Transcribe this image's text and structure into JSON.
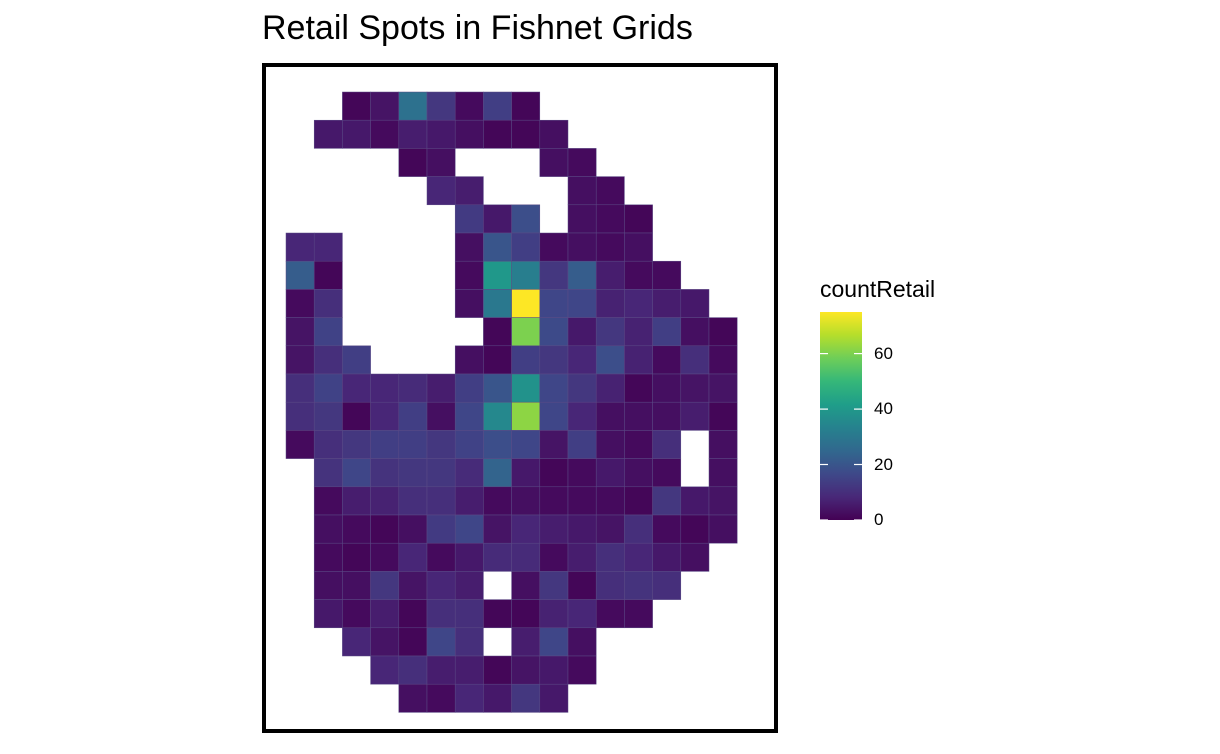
{
  "chart_data": {
    "type": "heatmap",
    "title": "Retail Spots in Fishnet Grids",
    "legend": {
      "title": "countRetail",
      "position": "right",
      "ticks": [
        0,
        20,
        40,
        60
      ],
      "tick_labels": [
        "0",
        "20",
        "40",
        "60"
      ],
      "range": [
        0,
        75
      ],
      "colormap": "viridis",
      "colors": [
        "#440154",
        "#482878",
        "#3e4989",
        "#31688e",
        "#26828e",
        "#1f9e89",
        "#35b779",
        "#6ece58",
        "#b5de2b",
        "#fde725"
      ]
    },
    "grid": false,
    "frame": true,
    "rows": [
      {
        "row": 1,
        "cells": [
          [
            2,
            1
          ],
          [
            3,
            4
          ],
          [
            4,
            28
          ],
          [
            5,
            12
          ],
          [
            6,
            2
          ],
          [
            7,
            14
          ],
          [
            8,
            1
          ]
        ]
      },
      {
        "row": 2,
        "cells": [
          [
            1,
            5
          ],
          [
            2,
            5
          ],
          [
            3,
            2
          ],
          [
            4,
            6
          ],
          [
            5,
            5
          ],
          [
            6,
            3
          ],
          [
            7,
            1
          ],
          [
            8,
            1
          ],
          [
            9,
            3
          ]
        ]
      },
      {
        "row": 3,
        "cells": [
          [
            4,
            1
          ],
          [
            5,
            3
          ],
          [
            9,
            3
          ],
          [
            10,
            2
          ]
        ]
      },
      {
        "row": 4,
        "cells": [
          [
            5,
            8
          ],
          [
            6,
            6
          ],
          [
            10,
            3
          ],
          [
            11,
            2
          ]
        ]
      },
      {
        "row": 5,
        "cells": [
          [
            6,
            13
          ],
          [
            7,
            5
          ],
          [
            8,
            18
          ],
          [
            10,
            3
          ],
          [
            11,
            2
          ],
          [
            12,
            1
          ]
        ]
      },
      {
        "row": 6,
        "cells": [
          [
            0,
            8
          ],
          [
            1,
            8
          ],
          [
            6,
            3
          ],
          [
            7,
            20
          ],
          [
            8,
            14
          ],
          [
            9,
            2
          ],
          [
            10,
            3
          ],
          [
            11,
            2
          ],
          [
            12,
            3
          ]
        ]
      },
      {
        "row": 7,
        "cells": [
          [
            0,
            22
          ],
          [
            1,
            1
          ],
          [
            6,
            2
          ],
          [
            7,
            40
          ],
          [
            8,
            32
          ],
          [
            9,
            12
          ],
          [
            10,
            22
          ],
          [
            11,
            6
          ],
          [
            12,
            2
          ],
          [
            13,
            2
          ]
        ]
      },
      {
        "row": 8,
        "cells": [
          [
            0,
            2
          ],
          [
            1,
            10
          ],
          [
            6,
            3
          ],
          [
            7,
            30
          ],
          [
            8,
            75
          ],
          [
            9,
            16
          ],
          [
            10,
            16
          ],
          [
            11,
            7
          ],
          [
            12,
            8
          ],
          [
            13,
            6
          ],
          [
            14,
            5
          ]
        ]
      },
      {
        "row": 9,
        "cells": [
          [
            0,
            4
          ],
          [
            1,
            15
          ],
          [
            7,
            1
          ],
          [
            8,
            60
          ],
          [
            9,
            17
          ],
          [
            10,
            5
          ],
          [
            11,
            12
          ],
          [
            12,
            7
          ],
          [
            13,
            14
          ],
          [
            14,
            3
          ],
          [
            15,
            1
          ]
        ]
      },
      {
        "row": 10,
        "cells": [
          [
            0,
            4
          ],
          [
            1,
            10
          ],
          [
            2,
            14
          ],
          [
            6,
            3
          ],
          [
            7,
            1
          ],
          [
            8,
            14
          ],
          [
            9,
            12
          ],
          [
            10,
            8
          ],
          [
            11,
            18
          ],
          [
            12,
            7
          ],
          [
            13,
            2
          ],
          [
            14,
            10
          ],
          [
            15,
            2
          ]
        ]
      },
      {
        "row": 11,
        "cells": [
          [
            0,
            10
          ],
          [
            1,
            15
          ],
          [
            2,
            8
          ],
          [
            3,
            8
          ],
          [
            4,
            9
          ],
          [
            5,
            6
          ],
          [
            6,
            14
          ],
          [
            7,
            20
          ],
          [
            8,
            38
          ],
          [
            9,
            16
          ],
          [
            10,
            12
          ],
          [
            11,
            7
          ],
          [
            12,
            1
          ],
          [
            13,
            3
          ],
          [
            14,
            4
          ],
          [
            15,
            4
          ]
        ]
      },
      {
        "row": 12,
        "cells": [
          [
            0,
            10
          ],
          [
            1,
            12
          ],
          [
            2,
            1
          ],
          [
            3,
            8
          ],
          [
            4,
            14
          ],
          [
            5,
            3
          ],
          [
            6,
            16
          ],
          [
            7,
            35
          ],
          [
            8,
            62
          ],
          [
            9,
            16
          ],
          [
            10,
            8
          ],
          [
            11,
            3
          ],
          [
            12,
            3
          ],
          [
            13,
            3
          ],
          [
            14,
            6
          ],
          [
            15,
            1
          ]
        ]
      },
      {
        "row": 13,
        "cells": [
          [
            0,
            2
          ],
          [
            1,
            10
          ],
          [
            2,
            12
          ],
          [
            3,
            14
          ],
          [
            4,
            14
          ],
          [
            5,
            12
          ],
          [
            6,
            15
          ],
          [
            7,
            18
          ],
          [
            8,
            16
          ],
          [
            9,
            4
          ],
          [
            10,
            14
          ],
          [
            11,
            3
          ],
          [
            12,
            2
          ],
          [
            13,
            10
          ],
          [
            15,
            3
          ]
        ]
      },
      {
        "row": 14,
        "cells": [
          [
            1,
            11
          ],
          [
            2,
            16
          ],
          [
            3,
            11
          ],
          [
            4,
            12
          ],
          [
            5,
            12
          ],
          [
            6,
            9
          ],
          [
            7,
            24
          ],
          [
            8,
            5
          ],
          [
            9,
            1
          ],
          [
            10,
            2
          ],
          [
            11,
            5
          ],
          [
            12,
            3
          ],
          [
            13,
            2
          ],
          [
            15,
            3
          ]
        ]
      },
      {
        "row": 15,
        "cells": [
          [
            1,
            2
          ],
          [
            2,
            6
          ],
          [
            3,
            7
          ],
          [
            4,
            10
          ],
          [
            5,
            10
          ],
          [
            6,
            6
          ],
          [
            7,
            2
          ],
          [
            8,
            3
          ],
          [
            9,
            2
          ],
          [
            10,
            2
          ],
          [
            11,
            2
          ],
          [
            12,
            1
          ],
          [
            13,
            12
          ],
          [
            14,
            5
          ],
          [
            15,
            4
          ]
        ]
      },
      {
        "row": 16,
        "cells": [
          [
            1,
            3
          ],
          [
            2,
            2
          ],
          [
            3,
            1
          ],
          [
            4,
            3
          ],
          [
            5,
            13
          ],
          [
            6,
            16
          ],
          [
            7,
            4
          ],
          [
            8,
            8
          ],
          [
            9,
            6
          ],
          [
            10,
            5
          ],
          [
            11,
            4
          ],
          [
            12,
            10
          ],
          [
            13,
            2
          ],
          [
            14,
            1
          ],
          [
            15,
            3
          ]
        ]
      },
      {
        "row": 17,
        "cells": [
          [
            1,
            2
          ],
          [
            2,
            1
          ],
          [
            3,
            2
          ],
          [
            4,
            8
          ],
          [
            5,
            2
          ],
          [
            6,
            5
          ],
          [
            7,
            9
          ],
          [
            8,
            9
          ],
          [
            9,
            2
          ],
          [
            10,
            6
          ],
          [
            11,
            10
          ],
          [
            12,
            8
          ],
          [
            13,
            5
          ],
          [
            14,
            3
          ]
        ]
      },
      {
        "row": 18,
        "cells": [
          [
            1,
            3
          ],
          [
            2,
            3
          ],
          [
            3,
            12
          ],
          [
            4,
            4
          ],
          [
            5,
            8
          ],
          [
            6,
            6
          ],
          [
            8,
            3
          ],
          [
            9,
            12
          ],
          [
            10,
            1
          ],
          [
            11,
            10
          ],
          [
            12,
            11
          ],
          [
            13,
            10
          ]
        ]
      },
      {
        "row": 19,
        "cells": [
          [
            1,
            5
          ],
          [
            2,
            2
          ],
          [
            3,
            6
          ],
          [
            4,
            1
          ],
          [
            5,
            10
          ],
          [
            6,
            10
          ],
          [
            7,
            1
          ],
          [
            8,
            1
          ],
          [
            9,
            7
          ],
          [
            10,
            8
          ],
          [
            11,
            2
          ],
          [
            12,
            2
          ]
        ]
      },
      {
        "row": 20,
        "cells": [
          [
            2,
            8
          ],
          [
            3,
            4
          ],
          [
            4,
            1
          ],
          [
            5,
            16
          ],
          [
            6,
            10
          ],
          [
            8,
            6
          ],
          [
            9,
            16
          ],
          [
            10,
            3
          ]
        ]
      },
      {
        "row": 21,
        "cells": [
          [
            3,
            8
          ],
          [
            4,
            10
          ],
          [
            5,
            6
          ],
          [
            6,
            6
          ],
          [
            7,
            1
          ],
          [
            8,
            4
          ],
          [
            9,
            5
          ],
          [
            10,
            2
          ]
        ]
      },
      {
        "row": 22,
        "cells": [
          [
            4,
            3
          ],
          [
            5,
            2
          ],
          [
            6,
            8
          ],
          [
            7,
            5
          ],
          [
            8,
            12
          ],
          [
            9,
            5
          ]
        ]
      }
    ]
  }
}
